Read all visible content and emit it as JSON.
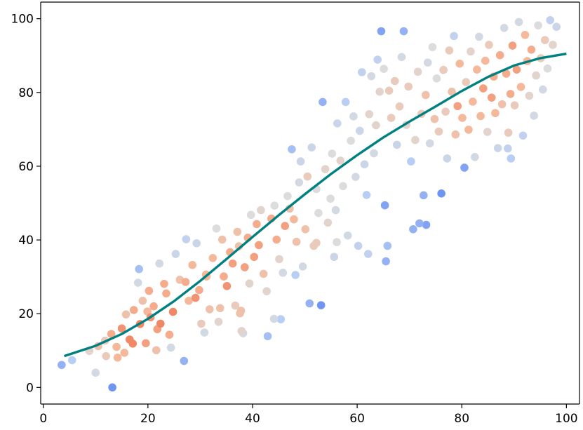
{
  "chart_data": {
    "type": "scatter",
    "title": "",
    "xlabel": "",
    "ylabel": "",
    "xlim": [
      -0.5,
      102.5
    ],
    "ylim": [
      -4.5,
      104.5
    ],
    "xticks": [
      0,
      20,
      40,
      60,
      80,
      100
    ],
    "yticks": [
      0,
      20,
      40,
      60,
      80,
      100
    ],
    "grid": false,
    "legend": "none",
    "point_color_encoding": "local point density (blue = sparse, red = dense)",
    "colormap": [
      "#6f95f2",
      "#b9cef4",
      "#dcdcdc",
      "#f5b89a",
      "#f08765"
    ],
    "curve_color": "#008080",
    "series": [
      {
        "kind": "scatter",
        "points": [
          [
            3.5,
            6.1
          ],
          [
            5.5,
            7.4
          ],
          [
            10,
            4
          ],
          [
            13.2,
            0
          ],
          [
            10.5,
            11.2
          ],
          [
            12,
            8.5
          ],
          [
            13,
            14.5
          ],
          [
            14,
            11
          ],
          [
            15,
            16
          ],
          [
            15.8,
            19.8
          ],
          [
            16.5,
            13
          ],
          [
            17.3,
            21
          ],
          [
            18.1,
            28.4
          ],
          [
            18.3,
            32.1
          ],
          [
            18.5,
            17.2
          ],
          [
            19,
            23.5
          ],
          [
            19.6,
            12
          ],
          [
            20.2,
            26.2
          ],
          [
            20.5,
            19
          ],
          [
            21.1,
            22
          ],
          [
            21.6,
            10.1
          ],
          [
            22.2,
            33.6
          ],
          [
            22.4,
            17.3
          ],
          [
            23.1,
            28.1
          ],
          [
            23.5,
            25.5
          ],
          [
            24.4,
            10.8
          ],
          [
            24.8,
            20.5
          ],
          [
            25.3,
            36.2
          ],
          [
            26.1,
            29.2
          ],
          [
            26.9,
            7.2
          ],
          [
            27.3,
            40.2
          ],
          [
            27.8,
            23.5
          ],
          [
            28.5,
            33.2
          ],
          [
            29.3,
            39.1
          ],
          [
            29.8,
            26.4
          ],
          [
            30.2,
            17.3
          ],
          [
            30.8,
            14.9
          ],
          [
            31.2,
            30.1
          ],
          [
            31.8,
            21.2
          ],
          [
            32.4,
            35.1
          ],
          [
            33.1,
            43.1
          ],
          [
            33.5,
            17.8
          ],
          [
            34.2,
            40.1
          ],
          [
            34.5,
            30.1
          ],
          [
            35.1,
            27.5
          ],
          [
            35.7,
            36.7
          ],
          [
            36.2,
            33.6
          ],
          [
            36.7,
            22.2
          ],
          [
            37.1,
            42.2
          ],
          [
            37.4,
            38.3
          ],
          [
            37.8,
            20.8
          ],
          [
            37.9,
            15.3
          ],
          [
            38.2,
            14.7
          ],
          [
            38.5,
            32.6
          ],
          [
            39.1,
            40.6
          ],
          [
            39.4,
            28.2
          ],
          [
            39.7,
            46.8
          ],
          [
            40.3,
            35.4
          ],
          [
            40.8,
            44.3
          ],
          [
            41.2,
            38.6
          ],
          [
            41.6,
            48.1
          ],
          [
            42.1,
            30.8
          ],
          [
            42.7,
            26.1
          ],
          [
            42.9,
            13.9
          ],
          [
            43.6,
            45.8
          ],
          [
            44.2,
            49.3
          ],
          [
            44.6,
            40.1
          ],
          [
            45.1,
            34.8
          ],
          [
            45.4,
            18.5
          ],
          [
            45.8,
            31.1
          ],
          [
            46.2,
            43.8
          ],
          [
            46.7,
            51.9
          ],
          [
            47.1,
            48.5
          ],
          [
            47.5,
            64.6
          ],
          [
            47.9,
            45.6
          ],
          [
            48.4,
            39.5
          ],
          [
            48.9,
            55.6
          ],
          [
            49.2,
            61.3
          ],
          [
            49.6,
            32.8
          ],
          [
            50.1,
            42.9
          ],
          [
            50.5,
            57.2
          ],
          [
            50.9,
            22.8
          ],
          [
            51.3,
            65.1
          ],
          [
            51.7,
            38.4
          ],
          [
            52.2,
            53.8
          ],
          [
            52.6,
            47.3
          ],
          [
            53.1,
            22.3
          ],
          [
            53.4,
            77.4
          ],
          [
            53.9,
            59.2
          ],
          [
            54.4,
            44.7
          ],
          [
            54.9,
            51.2
          ],
          [
            55.2,
            63.4
          ],
          [
            55.6,
            35.4
          ],
          [
            55.9,
            48.1
          ],
          [
            56.2,
            71.6
          ],
          [
            56.8,
            61.5
          ],
          [
            57.3,
            54.6
          ],
          [
            57.8,
            77.4
          ],
          [
            58.2,
            41.2
          ],
          [
            58.8,
            66.9
          ],
          [
            59.3,
            73.5
          ],
          [
            59.7,
            57.1
          ],
          [
            60.2,
            38.4
          ],
          [
            60.5,
            69.6
          ],
          [
            60.9,
            85.5
          ],
          [
            61.4,
            60.5
          ],
          [
            61.8,
            52.2
          ],
          [
            62.3,
            74.1
          ],
          [
            62.7,
            84.4
          ],
          [
            63.2,
            63.5
          ],
          [
            63.6,
            71.1
          ],
          [
            63.9,
            88.9
          ],
          [
            64.3,
            80.2
          ],
          [
            64.6,
            96.6
          ],
          [
            65.1,
            86.4
          ],
          [
            65.3,
            49.4
          ],
          [
            65.8,
            38.4
          ],
          [
            66.1,
            80.5
          ],
          [
            66.5,
            73.1
          ],
          [
            67.2,
            83.1
          ],
          [
            67.6,
            65.8
          ],
          [
            68.1,
            76.2
          ],
          [
            68.5,
            89.6
          ],
          [
            68.9,
            96.6
          ],
          [
            69.4,
            71.2
          ],
          [
            69.8,
            81.6
          ],
          [
            70.3,
            61.3
          ],
          [
            70.7,
            42.9
          ],
          [
            71.1,
            67.1
          ],
          [
            71.6,
            85.6
          ],
          [
            71.9,
            44.5
          ],
          [
            72.3,
            74.2
          ],
          [
            72.7,
            52.1
          ],
          [
            73.1,
            79.3
          ],
          [
            73.5,
            88.1
          ],
          [
            73.9,
            66.2
          ],
          [
            74.4,
            92.3
          ],
          [
            74.8,
            72.8
          ],
          [
            75.2,
            83.8
          ],
          [
            75.6,
            69.4
          ],
          [
            76.1,
            52.6
          ],
          [
            76.5,
            86.1
          ],
          [
            76.9,
            74.8
          ],
          [
            77.2,
            62.1
          ],
          [
            77.6,
            91.4
          ],
          [
            78.1,
            80.2
          ],
          [
            78.5,
            95.3
          ],
          [
            78.8,
            68.6
          ],
          [
            79.2,
            76.3
          ],
          [
            79.6,
            87.8
          ],
          [
            80.1,
            73.1
          ],
          [
            80.5,
            59.6
          ],
          [
            80.8,
            82.8
          ],
          [
            81.3,
            69.9
          ],
          [
            81.7,
            91.1
          ],
          [
            82.1,
            77.5
          ],
          [
            82.5,
            62.5
          ],
          [
            82.9,
            86.2
          ],
          [
            83.3,
            95.1
          ],
          [
            83.6,
            73.6
          ],
          [
            84.1,
            81.1
          ],
          [
            84.5,
            88.6
          ],
          [
            84.9,
            69.3
          ],
          [
            85.2,
            92.9
          ],
          [
            85.7,
            78.6
          ],
          [
            86.1,
            84.3
          ],
          [
            86.4,
            74.4
          ],
          [
            86.9,
            64.9
          ],
          [
            87.3,
            90.1
          ],
          [
            87.7,
            76.8
          ],
          [
            88.1,
            97.5
          ],
          [
            88.5,
            85.1
          ],
          [
            88.9,
            69.1
          ],
          [
            89.3,
            79.6
          ],
          [
            89.7,
            92.7
          ],
          [
            90.1,
            76.5
          ],
          [
            90.5,
            86.2
          ],
          [
            90.9,
            99.1
          ],
          [
            91.3,
            81.5
          ],
          [
            91.7,
            68.3
          ],
          [
            92.1,
            95.6
          ],
          [
            92.5,
            88.5
          ],
          [
            92.9,
            79.1
          ],
          [
            93.3,
            91.6
          ],
          [
            93.8,
            73.7
          ],
          [
            94.2,
            84.6
          ],
          [
            94.6,
            98.2
          ],
          [
            95.1,
            89.3
          ],
          [
            95.5,
            80.8
          ],
          [
            95.9,
            94.2
          ],
          [
            96.4,
            86.5
          ],
          [
            96.9,
            99.6
          ],
          [
            97.4,
            92.9
          ],
          [
            98.1,
            97.8
          ],
          [
            89.4,
            62.1
          ],
          [
            88.8,
            64.8
          ],
          [
            73.2,
            44.1
          ],
          [
            65.5,
            34.2
          ],
          [
            62.1,
            36.2
          ],
          [
            56.1,
            39.4
          ],
          [
            52.2,
            39.2
          ],
          [
            48.2,
            30.5
          ],
          [
            44.1,
            18.6
          ],
          [
            37.6,
            20.1
          ],
          [
            33.8,
            21.5
          ],
          [
            31.1,
            30.6
          ],
          [
            29.1,
            24.3
          ],
          [
            27.2,
            28.6
          ],
          [
            24.1,
            14.3
          ],
          [
            21.8,
            15.8
          ],
          [
            19.9,
            20.6
          ],
          [
            17.1,
            11.9
          ],
          [
            15.5,
            9.4
          ],
          [
            14.2,
            8.1
          ],
          [
            11.8,
            12.7
          ],
          [
            8.8,
            9.9
          ]
        ]
      },
      {
        "kind": "line",
        "name": "",
        "x": [
          4,
          10,
          15,
          20,
          25,
          30,
          35,
          40,
          45,
          50,
          55,
          60,
          65,
          70,
          75,
          80,
          85,
          90,
          95,
          100
        ],
        "y": [
          8.5,
          11.3,
          14.5,
          18.6,
          23.4,
          28.9,
          34.8,
          40.8,
          46.7,
          52.4,
          57.9,
          63,
          67.8,
          72.1,
          76.2,
          80.4,
          84.2,
          87.3,
          89.3,
          90.5
        ]
      }
    ]
  }
}
